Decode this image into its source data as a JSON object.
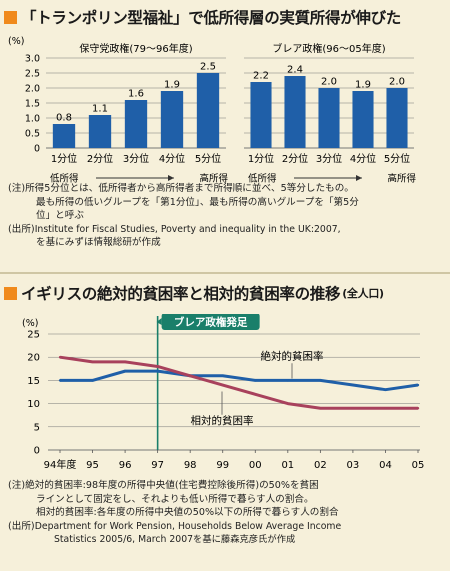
{
  "panel1": {
    "title": "「トランポリン型福祉」で低所得層の実質所得が伸びた",
    "unit_label": "(%)",
    "notes": {
      "note_label": "(注)",
      "note_lines": [
        "所得5分位とは、低所得者から高所得者まで所得順に並べ、5等分したもの。",
        "最も所得の低いグループを「第1分位」、最も所得の高いグループを「第5分",
        "位」と呼ぶ"
      ],
      "source_label": "(出所)",
      "source_lines": [
        "Institute for Fiscal Studies, Poverty and inequality in the UK:2007,",
        "を基にみずほ情報総研が作成"
      ]
    }
  },
  "panel2": {
    "title": "イギリスの絶対的貧困率と相対的貧困率の推移",
    "title_unit": "(全人口)",
    "unit_label": "(%)",
    "event_label": "ブレア政権発足",
    "notes": {
      "note_label": "(注)",
      "note_lines": [
        "絶対的貧困率:98年度の所得中央値(住宅費控除後所得)の50%を貧困",
        "ラインとして固定をし、それよりも低い所得で暮らす人の割合。",
        "相対的貧困率:各年度の所得中央値の50%以下の所得で暮らす人の割合"
      ],
      "source_label": "(出所)",
      "source_lines": [
        "Department for Work Pension, Households Below Average Income",
        "Statistics 2005/6, March 2007を基に藤森克彦氏が作成"
      ]
    }
  },
  "colors": {
    "background": "#f6f0da",
    "bar": "#1f5fa8",
    "accent": "#f08a1c",
    "absolute_line": "#1f5fa8",
    "relative_line": "#a8415c",
    "event_line": "#1a7f6a"
  },
  "chart_data": [
    {
      "type": "bar",
      "subtitle": "保守党政権(79〜96年度)",
      "categories": [
        "1分位",
        "2分位",
        "3分位",
        "4分位",
        "5分位"
      ],
      "values": [
        0.8,
        1.1,
        1.6,
        1.9,
        2.5
      ],
      "ylim": [
        0,
        3.0
      ],
      "yticks": [
        "0",
        "0.5",
        "1.0",
        "1.5",
        "2.0",
        "2.5",
        "3.0"
      ],
      "ylabel": "(%)",
      "low_label": "低所得",
      "high_label": "高所得"
    },
    {
      "type": "bar",
      "subtitle": "ブレア政権(96〜05年度)",
      "categories": [
        "1分位",
        "2分位",
        "3分位",
        "4分位",
        "5分位"
      ],
      "values": [
        2.2,
        2.4,
        2.0,
        1.9,
        2.0
      ],
      "ylim": [
        0,
        3.0
      ],
      "low_label": "低所得",
      "high_label": "高所得"
    },
    {
      "type": "line",
      "categories": [
        "94年度",
        "95",
        "96",
        "97",
        "98",
        "99",
        "00",
        "01",
        "02",
        "03",
        "04",
        "05"
      ],
      "ylim": [
        0,
        25
      ],
      "yticks": [
        "0",
        "5",
        "10",
        "15",
        "20",
        "25"
      ],
      "ylabel": "(%)",
      "series": [
        {
          "name": "絶対的貧困率",
          "values": [
            15,
            15,
            17,
            17,
            16,
            16,
            15,
            15,
            15,
            14,
            13,
            14
          ]
        },
        {
          "name": "相対的貧困率",
          "values": [
            20,
            19,
            19,
            18,
            16,
            14,
            12,
            10,
            9,
            9,
            9,
            9
          ]
        }
      ],
      "event": {
        "label": "ブレア政権発足",
        "x": "97"
      }
    }
  ]
}
